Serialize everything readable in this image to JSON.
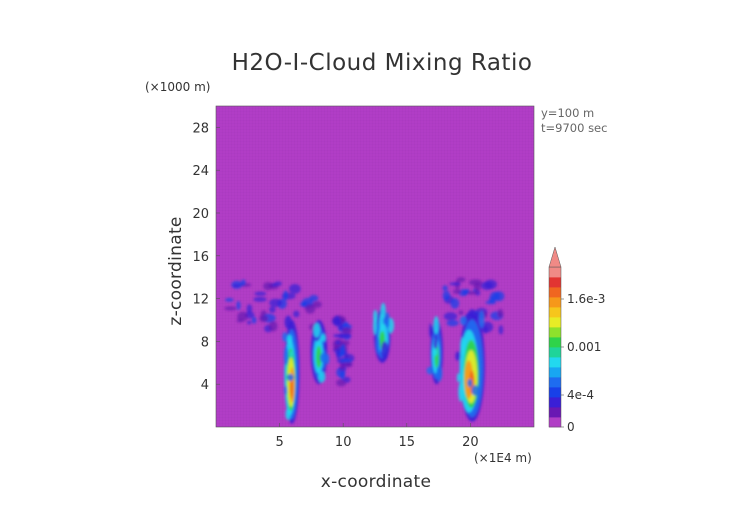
{
  "chart_data": {
    "type": "heatmap",
    "title": "H2O-I-Cloud Mixing Ratio",
    "xlabel": "x-coordinate",
    "ylabel": "z-coordinate",
    "x_unit": "(×1E4 m)",
    "y_unit": "(×1000 m)",
    "annotations": [
      "y=100 m",
      "t=9700 sec"
    ],
    "xlim": [
      0,
      25
    ],
    "ylim": [
      0,
      30
    ],
    "xticks": [
      5,
      10,
      15,
      20
    ],
    "yticks": [
      4,
      8,
      12,
      16,
      20,
      24,
      28
    ],
    "background_color": "#b13dc6",
    "colorbar": {
      "extend": "max",
      "range": [
        0,
        0.002
      ],
      "ticks": [
        {
          "value": 0,
          "label": "0"
        },
        {
          "value": 0.0004,
          "label": "4e-4"
        },
        {
          "value": 0.001,
          "label": "0.001"
        },
        {
          "value": 0.0016,
          "label": "1.6e-3"
        }
      ],
      "colors": [
        "#b13dc6",
        "#6a18b3",
        "#3a1fd6",
        "#1840e8",
        "#1e6cf0",
        "#18a6f2",
        "#22d8ef",
        "#1fd49a",
        "#2fd34a",
        "#8ee12c",
        "#e8ec26",
        "#f6c61c",
        "#f6981a",
        "#f06620",
        "#e23432",
        "#f08a86"
      ]
    },
    "cloud_regions": [
      {
        "x": [
          1,
          8
        ],
        "z": [
          9,
          13.5
        ],
        "level": "low"
      },
      {
        "x": [
          5.3,
          6.5
        ],
        "z": [
          0.3,
          10
        ],
        "level": "high",
        "peak": "x≈5.7, z≈7"
      },
      {
        "x": [
          7.5,
          8.8
        ],
        "z": [
          4,
          10
        ],
        "level": "medium"
      },
      {
        "x": [
          9.5,
          10.5
        ],
        "z": [
          4,
          10
        ],
        "level": "low"
      },
      {
        "x": [
          12.5,
          13.8
        ],
        "z": [
          6,
          11
        ],
        "level": "medium"
      },
      {
        "x": [
          16.8,
          17.8
        ],
        "z": [
          4,
          10
        ],
        "level": "medium"
      },
      {
        "x": [
          18,
          22.5
        ],
        "z": [
          9,
          14
        ],
        "level": "low"
      },
      {
        "x": [
          19,
          21
        ],
        "z": [
          0.5,
          11
        ],
        "level": "high",
        "peak": "x≈20, z≈3"
      }
    ]
  }
}
